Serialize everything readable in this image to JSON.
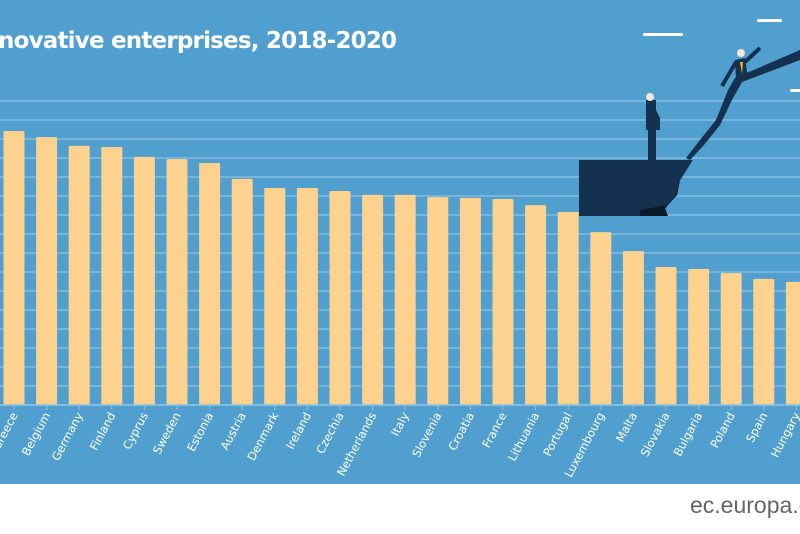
{
  "chart_data": {
    "type": "bar",
    "title": "novative enterprises, 2018-2020",
    "categories": [
      "Greece",
      "Belgium",
      "Germany",
      "Finland",
      "Cyprus",
      "Sweden",
      "Estonia",
      "Austria",
      "Denmark",
      "Ireland",
      "Czechia",
      "Netherlands",
      "Italy",
      "Slovenia",
      "Croatia",
      "France",
      "Lithuania",
      "Portugal",
      "Luxembourg",
      "Malta",
      "Slovakia",
      "Bulgaria",
      "Poland",
      "Spain",
      "Hungary"
    ],
    "values": [
      72.1,
      70.5,
      68.2,
      67.9,
      65.3,
      64.7,
      63.7,
      59.5,
      57.1,
      57.1,
      56.3,
      55.3,
      55.3,
      54.7,
      54.5,
      54.2,
      52.6,
      50.8,
      45.5,
      40.5,
      36.3,
      35.8,
      34.7,
      33.2,
      32.4
    ],
    "ylim": [
      0,
      80
    ],
    "grid_step": 5,
    "grid": true,
    "xlabel": "",
    "ylabel": "",
    "colors": {
      "background": "#519fcf",
      "bar": "#fcd28e",
      "grid": "#8ec2e2",
      "label": "#ffffff"
    }
  },
  "footer": {
    "source": "ec.europa.eu"
  }
}
